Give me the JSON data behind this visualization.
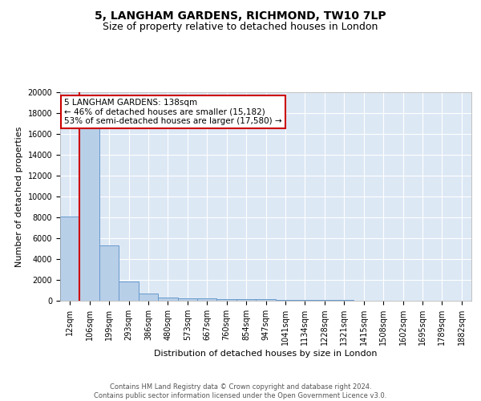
{
  "title": "5, LANGHAM GARDENS, RICHMOND, TW10 7LP",
  "subtitle": "Size of property relative to detached houses in London",
  "xlabel": "Distribution of detached houses by size in London",
  "ylabel": "Number of detached properties",
  "bin_labels": [
    "12sqm",
    "106sqm",
    "199sqm",
    "293sqm",
    "386sqm",
    "480sqm",
    "573sqm",
    "667sqm",
    "760sqm",
    "854sqm",
    "947sqm",
    "1041sqm",
    "1134sqm",
    "1228sqm",
    "1321sqm",
    "1415sqm",
    "1508sqm",
    "1602sqm",
    "1695sqm",
    "1789sqm",
    "1882sqm"
  ],
  "bar_heights": [
    8100,
    16500,
    5300,
    1850,
    700,
    300,
    220,
    200,
    180,
    150,
    120,
    100,
    80,
    60,
    40,
    30,
    20,
    15,
    10,
    8,
    5
  ],
  "bar_color": "#b8cfe8",
  "bar_edge_color": "#6699cc",
  "background_color": "#dde8f5",
  "annotation_text": "5 LANGHAM GARDENS: 138sqm\n← 46% of detached houses are smaller (15,182)\n53% of semi-detached houses are larger (17,580) →",
  "annotation_box_color": "#ffffff",
  "annotation_border_color": "#cc0000",
  "red_line_color": "#cc0000",
  "footer_text": "Contains HM Land Registry data © Crown copyright and database right 2024.\nContains public sector information licensed under the Open Government Licence v3.0.",
  "ylim": [
    0,
    20000
  ],
  "yticks": [
    0,
    2000,
    4000,
    6000,
    8000,
    10000,
    12000,
    14000,
    16000,
    18000,
    20000
  ],
  "title_fontsize": 10,
  "subtitle_fontsize": 9,
  "ylabel_fontsize": 8,
  "xlabel_fontsize": 8,
  "tick_fontsize": 7,
  "footer_fontsize": 6
}
